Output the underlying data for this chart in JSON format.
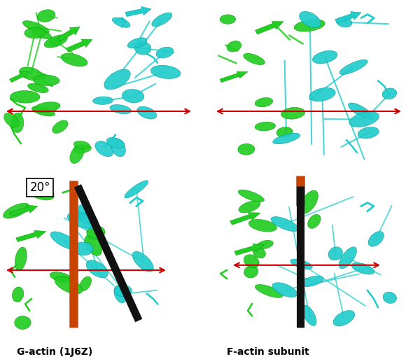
{
  "background_color": "#ffffff",
  "label_bottom_left": "G-actin (1J6Z)",
  "label_bottom_right": "F-actin subunit",
  "angle_label": "20°",
  "arrow_color": "#cc0000",
  "rod_orange_color": "#c84400",
  "rod_black_color": "#111111",
  "green_color": "#22cc22",
  "cyan_color": "#22cccc",
  "green_dark": "#009900",
  "cyan_dark": "#009999",
  "fig_width": 6.0,
  "fig_height": 5.13,
  "label_fontsize": 10
}
